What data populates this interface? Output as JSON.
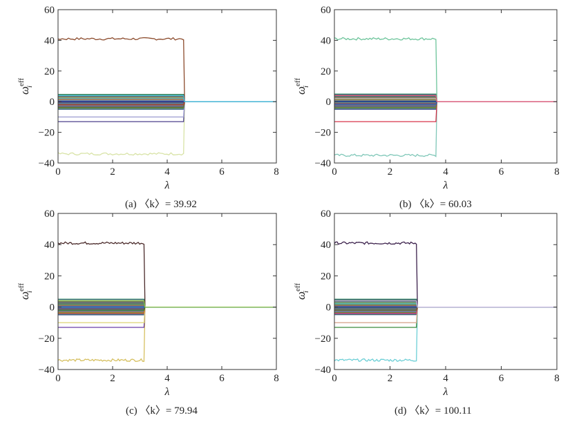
{
  "chart_data": [
    {
      "type": "line",
      "caption": "(a) 〈k〉= 39.92",
      "xlabel": "λ",
      "ylabel": "ω_i^eff",
      "ylabel_base": "ω",
      "ylabel_sub": "i",
      "ylabel_sup": "eff",
      "xlim": [
        0,
        8
      ],
      "ylim": [
        -40,
        60
      ],
      "xticks": [
        "0",
        "2",
        "4",
        "6",
        "8"
      ],
      "yticks": [
        "−40",
        "−20",
        "0",
        "20",
        "40",
        "60"
      ],
      "grid": false,
      "legend": "none",
      "collapse_lambda": 4.6,
      "series": [
        {
          "values_before": 41,
          "color": "#8b4a2b"
        },
        {
          "values_before": -34,
          "color": "#d8e3a6"
        },
        {
          "values_before": -13,
          "color": "#4b3f8c"
        },
        {
          "values_before": -10,
          "color": "#9b9bd0"
        },
        {
          "values_before": -4,
          "color": "#5b7a2a"
        },
        {
          "values_before": -2,
          "color": "#c0392b"
        },
        {
          "values_before": 0,
          "color": "#1f3f8f"
        },
        {
          "values_before": 2,
          "color": "#6fb0b0"
        },
        {
          "values_before": 4,
          "color": "#3fb6d9"
        }
      ]
    },
    {
      "type": "line",
      "caption": "(b) 〈k〉= 60.03",
      "xlabel": "λ",
      "ylabel": "ω_i^eff",
      "ylabel_base": "ω",
      "ylabel_sub": "i",
      "ylabel_sup": "eff",
      "xlim": [
        0,
        8
      ],
      "ylim": [
        -40,
        60
      ],
      "xticks": [
        "0",
        "2",
        "4",
        "6",
        "8"
      ],
      "yticks": [
        "−40",
        "−20",
        "0",
        "20",
        "40",
        "60"
      ],
      "grid": false,
      "legend": "none",
      "collapse_lambda": 3.65,
      "series": [
        {
          "values_before": 41,
          "color": "#6cc49a"
        },
        {
          "values_before": -35,
          "color": "#7fc7b8"
        },
        {
          "values_before": -13,
          "color": "#d9334a"
        },
        {
          "values_before": -4,
          "color": "#6a8a3a"
        },
        {
          "values_before": -2,
          "color": "#2f5fbf"
        },
        {
          "values_before": 0,
          "color": "#1b2f7a"
        },
        {
          "values_before": 2,
          "color": "#b3b3b3"
        },
        {
          "values_before": 4,
          "color": "#e05a7a"
        }
      ]
    },
    {
      "type": "line",
      "caption": "(c) 〈k〉= 79.94",
      "xlabel": "λ",
      "ylabel": "ω_i^eff",
      "ylabel_base": "ω",
      "ylabel_sub": "i",
      "ylabel_sup": "eff",
      "xlim": [
        0,
        8
      ],
      "ylim": [
        -40,
        60
      ],
      "xticks": [
        "0",
        "2",
        "4",
        "6",
        "8"
      ],
      "yticks": [
        "−40",
        "−20",
        "0",
        "20",
        "40",
        "60"
      ],
      "grid": false,
      "legend": "none",
      "collapse_lambda": 3.15,
      "series": [
        {
          "values_before": 41,
          "color": "#4a2a2a"
        },
        {
          "values_before": -34,
          "color": "#d6c060"
        },
        {
          "values_before": -13,
          "color": "#6a3fa8"
        },
        {
          "values_before": -10,
          "color": "#e0d880"
        },
        {
          "values_before": -4,
          "color": "#c56a2a"
        },
        {
          "values_before": -2,
          "color": "#3a7a2a"
        },
        {
          "values_before": 0,
          "color": "#1f5fbf"
        },
        {
          "values_before": 2,
          "color": "#2a9a7a"
        },
        {
          "values_before": 4,
          "color": "#8ac04a"
        }
      ]
    },
    {
      "type": "line",
      "caption": "(d) 〈k〉= 100.11",
      "xlabel": "λ",
      "ylabel": "ω_i^eff",
      "ylabel_base": "ω",
      "ylabel_sub": "i",
      "ylabel_sup": "eff",
      "xlim": [
        0,
        8
      ],
      "ylim": [
        -40,
        60
      ],
      "xticks": [
        "0",
        "2",
        "4",
        "6",
        "8"
      ],
      "yticks": [
        "−40",
        "−20",
        "0",
        "20",
        "40",
        "60"
      ],
      "grid": false,
      "legend": "none",
      "collapse_lambda": 2.95,
      "series": [
        {
          "values_before": 41,
          "color": "#3a1f4a"
        },
        {
          "values_before": -34,
          "color": "#6ccfd6"
        },
        {
          "values_before": -13,
          "color": "#3a8a3a"
        },
        {
          "values_before": -10,
          "color": "#d8a890"
        },
        {
          "values_before": -4,
          "color": "#c04a6a"
        },
        {
          "values_before": -2,
          "color": "#7a5a2a"
        },
        {
          "values_before": 0,
          "color": "#1f3f8f"
        },
        {
          "values_before": 2,
          "color": "#4ab0a0"
        },
        {
          "values_before": 4,
          "color": "#c8b8e0"
        }
      ]
    }
  ]
}
